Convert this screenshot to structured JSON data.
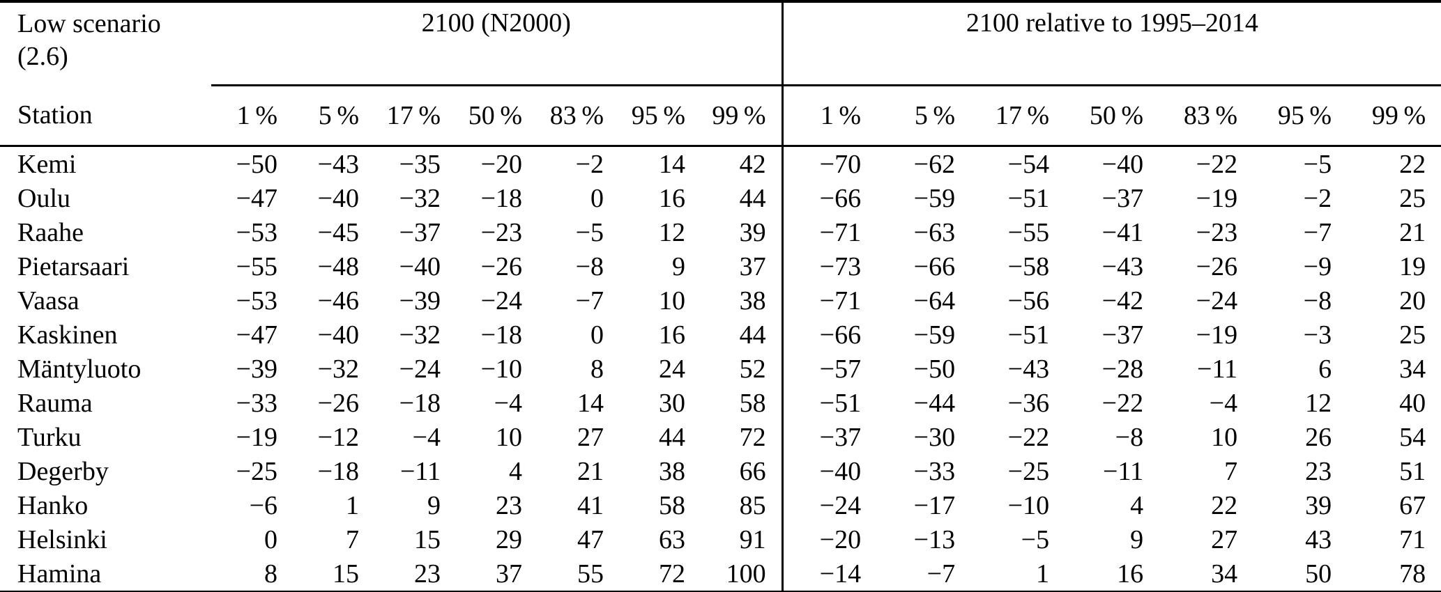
{
  "page": {
    "background": "#ffffff",
    "text_color": "#000000"
  },
  "table": {
    "scenario_label_line1": "Low scenario",
    "scenario_label_line2": "(2.6)",
    "station_header": "Station",
    "group1": {
      "label": "2100 (N2000)",
      "percentiles": [
        "1 %",
        "5 %",
        "17 %",
        "50 %",
        "83 %",
        "95 %",
        "99 %"
      ]
    },
    "group2": {
      "label": "2100 relative to 1995–2014",
      "percentiles": [
        "1 %",
        "5 %",
        "17 %",
        "50 %",
        "83 %",
        "95 %",
        "99 %"
      ]
    },
    "rows": [
      {
        "station": "Kemi",
        "g1": [
          "−50",
          "−43",
          "−35",
          "−20",
          "−2",
          "14",
          "42"
        ],
        "g2": [
          "−70",
          "−62",
          "−54",
          "−40",
          "−22",
          "−5",
          "22"
        ]
      },
      {
        "station": "Oulu",
        "g1": [
          "−47",
          "−40",
          "−32",
          "−18",
          "0",
          "16",
          "44"
        ],
        "g2": [
          "−66",
          "−59",
          "−51",
          "−37",
          "−19",
          "−2",
          "25"
        ]
      },
      {
        "station": "Raahe",
        "g1": [
          "−53",
          "−45",
          "−37",
          "−23",
          "−5",
          "12",
          "39"
        ],
        "g2": [
          "−71",
          "−63",
          "−55",
          "−41",
          "−23",
          "−7",
          "21"
        ]
      },
      {
        "station": "Pietarsaari",
        "g1": [
          "−55",
          "−48",
          "−40",
          "−26",
          "−8",
          "9",
          "37"
        ],
        "g2": [
          "−73",
          "−66",
          "−58",
          "−43",
          "−26",
          "−9",
          "19"
        ]
      },
      {
        "station": "Vaasa",
        "g1": [
          "−53",
          "−46",
          "−39",
          "−24",
          "−7",
          "10",
          "38"
        ],
        "g2": [
          "−71",
          "−64",
          "−56",
          "−42",
          "−24",
          "−8",
          "20"
        ]
      },
      {
        "station": "Kaskinen",
        "g1": [
          "−47",
          "−40",
          "−32",
          "−18",
          "0",
          "16",
          "44"
        ],
        "g2": [
          "−66",
          "−59",
          "−51",
          "−37",
          "−19",
          "−3",
          "25"
        ]
      },
      {
        "station": "Mäntyluoto",
        "g1": [
          "−39",
          "−32",
          "−24",
          "−10",
          "8",
          "24",
          "52"
        ],
        "g2": [
          "−57",
          "−50",
          "−43",
          "−28",
          "−11",
          "6",
          "34"
        ]
      },
      {
        "station": "Rauma",
        "g1": [
          "−33",
          "−26",
          "−18",
          "−4",
          "14",
          "30",
          "58"
        ],
        "g2": [
          "−51",
          "−44",
          "−36",
          "−22",
          "−4",
          "12",
          "40"
        ]
      },
      {
        "station": "Turku",
        "g1": [
          "−19",
          "−12",
          "−4",
          "10",
          "27",
          "44",
          "72"
        ],
        "g2": [
          "−37",
          "−30",
          "−22",
          "−8",
          "10",
          "26",
          "54"
        ]
      },
      {
        "station": "Degerby",
        "g1": [
          "−25",
          "−18",
          "−11",
          "4",
          "21",
          "38",
          "66"
        ],
        "g2": [
          "−40",
          "−33",
          "−25",
          "−11",
          "7",
          "23",
          "51"
        ]
      },
      {
        "station": "Hanko",
        "g1": [
          "−6",
          "1",
          "9",
          "23",
          "41",
          "58",
          "85"
        ],
        "g2": [
          "−24",
          "−17",
          "−10",
          "4",
          "22",
          "39",
          "67"
        ]
      },
      {
        "station": "Helsinki",
        "g1": [
          "0",
          "7",
          "15",
          "29",
          "47",
          "63",
          "91"
        ],
        "g2": [
          "−20",
          "−13",
          "−5",
          "9",
          "27",
          "43",
          "71"
        ]
      },
      {
        "station": "Hamina",
        "g1": [
          "8",
          "15",
          "23",
          "37",
          "55",
          "72",
          "100"
        ],
        "g2": [
          "−14",
          "−7",
          "1",
          "16",
          "34",
          "50",
          "78"
        ]
      }
    ]
  }
}
